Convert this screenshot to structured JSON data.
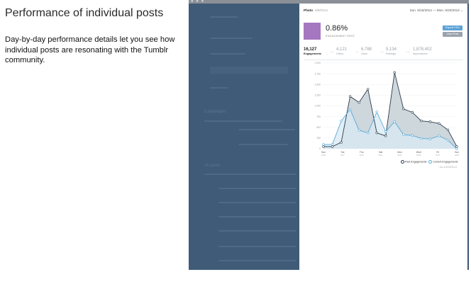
{
  "slide": {
    "title": "Performance of individual posts",
    "description": "Day-by-day performance details let you see how individual posts are resonating with the Tumblr community."
  },
  "window": {
    "dots": "● ● ●"
  },
  "dashboard": {
    "section_campaigns": "Campaigns",
    "section_all_posts": "All posts"
  },
  "panel": {
    "post_type": "Photo",
    "post_date": "6/9/2014",
    "date_range": "Sun. 6/15/2014 — Mon. 6/23/2014 ⌄",
    "engagement_rate": "0.86%",
    "engagement_rate_label": "ENGAGEMENT RATE",
    "export_label": "Export CSV",
    "view_post_label": "View Post",
    "hero_color": "#a577c1",
    "stats": [
      {
        "value": "16,127",
        "label": "Engagements"
      },
      {
        "value": "4,121",
        "label": "Clicks"
      },
      {
        "value": "6,788",
        "label": "Likes"
      },
      {
        "value": "5,134",
        "label": "Reblogs"
      },
      {
        "value": "1,878,402",
        "label": "Impressions"
      }
    ],
    "footnote": "* As of 6/31/2014"
  },
  "chart_data": {
    "type": "area",
    "title": "",
    "xlabel": "",
    "ylabel": "",
    "ylim": [
      0,
      2000
    ],
    "yticks": [
      "2,000",
      "1,750",
      "1,500",
      "1,250",
      "1,000",
      "750",
      "500",
      "250",
      "0"
    ],
    "x_labels": [
      {
        "day": "Sun",
        "date": "6/15"
      },
      {
        "day": "Tue",
        "date": "6/17"
      },
      {
        "day": "Thu",
        "date": "6/19"
      },
      {
        "day": "Sat",
        "date": "6/21"
      },
      {
        "day": "Mon",
        "date": "6/23"
      },
      {
        "day": "Wed",
        "date": "6/25"
      },
      {
        "day": "Fri",
        "date": "6/27"
      },
      {
        "day": "Sun",
        "date": "6/29"
      }
    ],
    "series": [
      {
        "name": "Past Engagements",
        "color": "#2b3a4a",
        "fill": "#c5d0d6",
        "values": [
          50,
          50,
          150,
          1220,
          1080,
          1390,
          370,
          300,
          1780,
          930,
          850,
          650,
          630,
          590,
          440,
          50
        ]
      },
      {
        "name": "Current Engagements",
        "color": "#5aaad6",
        "fill": "#d8eaf4",
        "values": [
          100,
          100,
          650,
          920,
          430,
          370,
          860,
          400,
          630,
          330,
          310,
          240,
          230,
          300,
          200,
          0
        ]
      }
    ],
    "legend_position": "bottom-right",
    "grid": true
  }
}
